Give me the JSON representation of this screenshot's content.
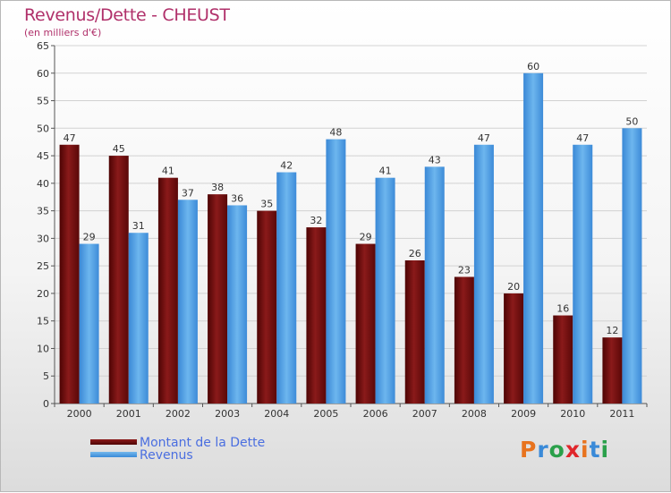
{
  "title": "Revenus/Dette - CHEUST",
  "subtitle": "(en milliers d'€)",
  "brand": "Proxiti",
  "colors": {
    "title": "#b0306a",
    "dette": "#6b0c0c",
    "revenus": "#4d9fe3",
    "legend_text": "#4a6ee0"
  },
  "legend": [
    {
      "label": "Montant de la Dette",
      "color": "#6b0c0c"
    },
    {
      "label": "Revenus",
      "color": "#4d9fe3"
    }
  ],
  "chart_data": {
    "type": "bar",
    "categories": [
      "2000",
      "2001",
      "2002",
      "2003",
      "2004",
      "2005",
      "2006",
      "2007",
      "2008",
      "2009",
      "2010",
      "2011"
    ],
    "series": [
      {
        "name": "Montant de la Dette",
        "values": [
          47,
          45,
          41,
          38,
          35,
          32,
          29,
          26,
          23,
          20,
          16,
          12
        ]
      },
      {
        "name": "Revenus",
        "values": [
          29,
          31,
          37,
          36,
          42,
          48,
          41,
          43,
          47,
          60,
          47,
          50
        ]
      }
    ],
    "ylim": [
      0,
      65
    ],
    "yticks": [
      0,
      5,
      10,
      15,
      20,
      25,
      30,
      35,
      40,
      45,
      50,
      55,
      60,
      65
    ],
    "grid": true,
    "legend_position": "bottom-left",
    "data_labels": true
  }
}
